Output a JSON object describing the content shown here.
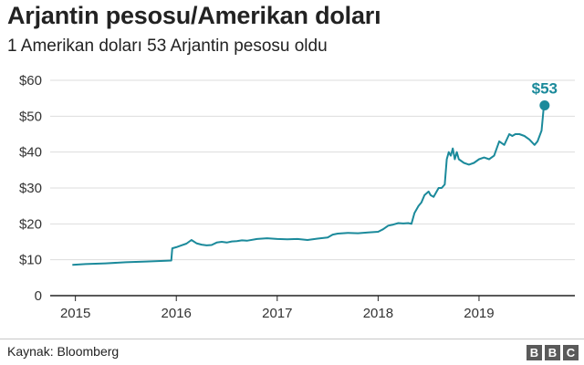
{
  "header": {
    "title": "Arjantin pesosu/Amerikan doları",
    "subtitle": "1 Amerikan doları 53 Arjantin pesosu oldu"
  },
  "footer": {
    "source": "Kaynak: Bloomberg",
    "logo_letters": [
      "B",
      "B",
      "C"
    ]
  },
  "colors": {
    "line": "#1b8a9b",
    "axis": "#222222",
    "grid": "#dddddd"
  },
  "chart_data": {
    "type": "line",
    "title": "Arjantin pesosu/Amerikan doları",
    "subtitle": "1 Amerikan doları 53 Arjantin pesosu oldu",
    "xlabel": "",
    "ylabel": "",
    "xlim": [
      2014.75,
      2019.95
    ],
    "ylim": [
      0,
      60
    ],
    "x_ticks": [
      2015,
      2016,
      2017,
      2018,
      2019
    ],
    "x_tick_labels": [
      "2015",
      "2016",
      "2017",
      "2018",
      "2019"
    ],
    "y_ticks": [
      0,
      10,
      20,
      30,
      40,
      50,
      60
    ],
    "y_tick_labels": [
      "0",
      "$10",
      "$20",
      "$30",
      "$40",
      "$50",
      "$60"
    ],
    "grid": "horizontal",
    "legend": "none",
    "series": [
      {
        "x": [
          2014.97,
          2015.1,
          2015.3,
          2015.5,
          2015.7,
          2015.9,
          2015.95,
          2015.96,
          2016.0,
          2016.05,
          2016.1,
          2016.15,
          2016.2,
          2016.25,
          2016.3,
          2016.35,
          2016.4,
          2016.45,
          2016.5,
          2016.55,
          2016.6,
          2016.65,
          2016.7,
          2016.8,
          2016.9,
          2017.0,
          2017.1,
          2017.2,
          2017.3,
          2017.4,
          2017.5,
          2017.55,
          2017.6,
          2017.7,
          2017.8,
          2017.9,
          2018.0,
          2018.05,
          2018.1,
          2018.15,
          2018.2,
          2018.25,
          2018.3,
          2018.33,
          2018.36,
          2018.4,
          2018.43,
          2018.46,
          2018.5,
          2018.52,
          2018.55,
          2018.58,
          2018.6,
          2018.63,
          2018.66,
          2018.68,
          2018.7,
          2018.72,
          2018.74,
          2018.76,
          2018.78,
          2018.8,
          2018.85,
          2018.9,
          2018.95,
          2019.0,
          2019.05,
          2019.1,
          2019.15,
          2019.2,
          2019.25,
          2019.3,
          2019.33,
          2019.36,
          2019.4,
          2019.45,
          2019.5,
          2019.55,
          2019.58,
          2019.6,
          2019.62,
          2019.64,
          2019.65
        ],
        "values": [
          8.6,
          8.8,
          9.0,
          9.3,
          9.5,
          9.7,
          9.8,
          13.2,
          13.5,
          14.0,
          14.5,
          15.5,
          14.6,
          14.2,
          14.0,
          14.1,
          14.8,
          15.0,
          14.8,
          15.1,
          15.2,
          15.4,
          15.3,
          15.8,
          16.0,
          15.8,
          15.7,
          15.8,
          15.5,
          15.9,
          16.2,
          17.0,
          17.3,
          17.5,
          17.4,
          17.6,
          17.8,
          18.5,
          19.5,
          19.8,
          20.2,
          20.1,
          20.2,
          20.0,
          23.0,
          25.0,
          26.0,
          28.0,
          29.0,
          28.0,
          27.5,
          29.0,
          30.0,
          30.0,
          31.0,
          38.0,
          40.0,
          39.0,
          41.0,
          38.0,
          40.0,
          38.0,
          37.0,
          36.5,
          37.0,
          38.0,
          38.5,
          38.0,
          39.0,
          43.0,
          42.0,
          45.0,
          44.5,
          45.0,
          45.0,
          44.5,
          43.5,
          42.0,
          43.0,
          44.5,
          46.0,
          52.0,
          53.0
        ]
      }
    ],
    "callout": {
      "x": 2019.65,
      "value": 53,
      "label": "$53"
    }
  }
}
